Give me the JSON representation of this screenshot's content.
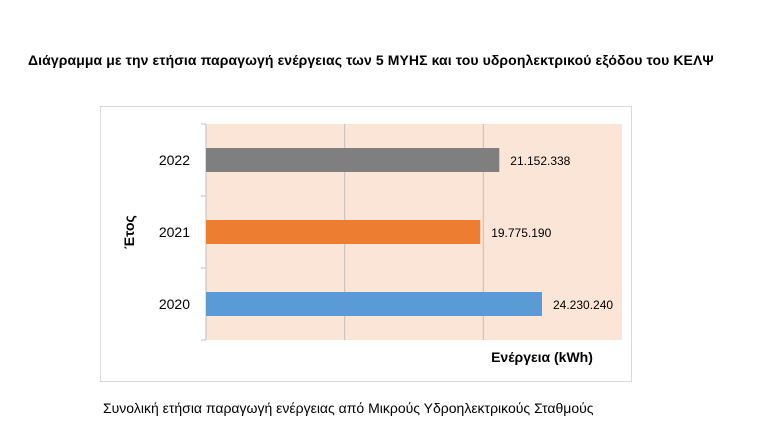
{
  "document": {
    "title": "Διάγραμμα με την ετήσια παραγωγή ενέργειας των 5 ΜΥΗΣ και του υδροηλεκτρικού εξόδου του ΚΕΛΨ",
    "caption": "Συνολική ετήσια παραγωγή ενέργειας από Μικρούς Υδροηλεκτρικούς Σταθμούς"
  },
  "chart_data": {
    "type": "bar",
    "orientation": "horizontal",
    "categories": [
      "2022",
      "2021",
      "2020"
    ],
    "values": [
      21152338,
      19775190,
      24230240
    ],
    "data_labels": [
      "21.152.338",
      "19.775.190",
      "24.230.240"
    ],
    "bar_colors": [
      "#7f7f7f",
      "#ed7d31",
      "#5b9bd5"
    ],
    "plot_background": "#fbe5d6",
    "gridline_color": "#bfbfbf",
    "xlabel": "Ενέργεια (kWh)",
    "ylabel": "Έτος",
    "xlim": [
      0,
      30000000
    ],
    "x_gridlines": [
      10000000,
      20000000
    ],
    "grid": true,
    "legend": "none"
  }
}
